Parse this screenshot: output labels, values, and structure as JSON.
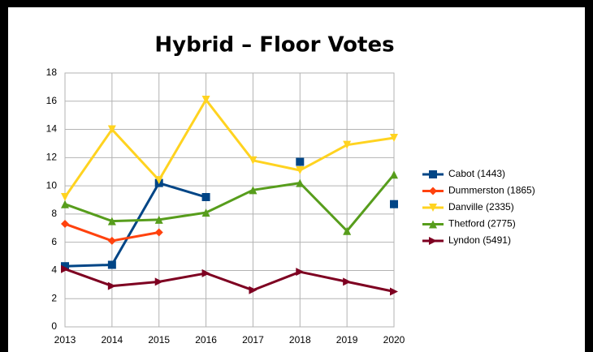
{
  "chart_data": {
    "type": "line",
    "title": "Hybrid – Floor Votes",
    "categories": [
      "2013",
      "2014",
      "2015",
      "2016",
      "2017",
      "2018",
      "2019",
      "2020"
    ],
    "series": [
      {
        "name": "Cabot (1443)",
        "color": "#004586",
        "marker": "square",
        "values": [
          4.3,
          4.4,
          10.2,
          9.2,
          null,
          11.7,
          null,
          8.7
        ]
      },
      {
        "name": "Dummerston (1865)",
        "color": "#ff420e",
        "marker": "diamond",
        "values": [
          7.3,
          6.1,
          6.7,
          null,
          null,
          null,
          null,
          null
        ]
      },
      {
        "name": "Danville (2335)",
        "color": "#ffd320",
        "marker": "triangle-down",
        "values": [
          9.2,
          14.0,
          10.4,
          16.1,
          11.8,
          11.1,
          12.9,
          13.4
        ]
      },
      {
        "name": "Thetford (2775)",
        "color": "#579d1c",
        "marker": "triangle-up",
        "values": [
          8.7,
          7.5,
          7.6,
          8.1,
          9.7,
          10.2,
          6.8,
          10.8
        ]
      },
      {
        "name": "Lyndon (5491)",
        "color": "#7e0021",
        "marker": "triangle-right",
        "values": [
          4.1,
          2.9,
          3.2,
          3.8,
          2.6,
          3.9,
          3.2,
          2.5
        ]
      }
    ],
    "ylim": [
      0,
      18
    ],
    "yticks": [
      0,
      2,
      4,
      6,
      8,
      10,
      12,
      14,
      16,
      18
    ],
    "grid": true,
    "legend": "right"
  }
}
